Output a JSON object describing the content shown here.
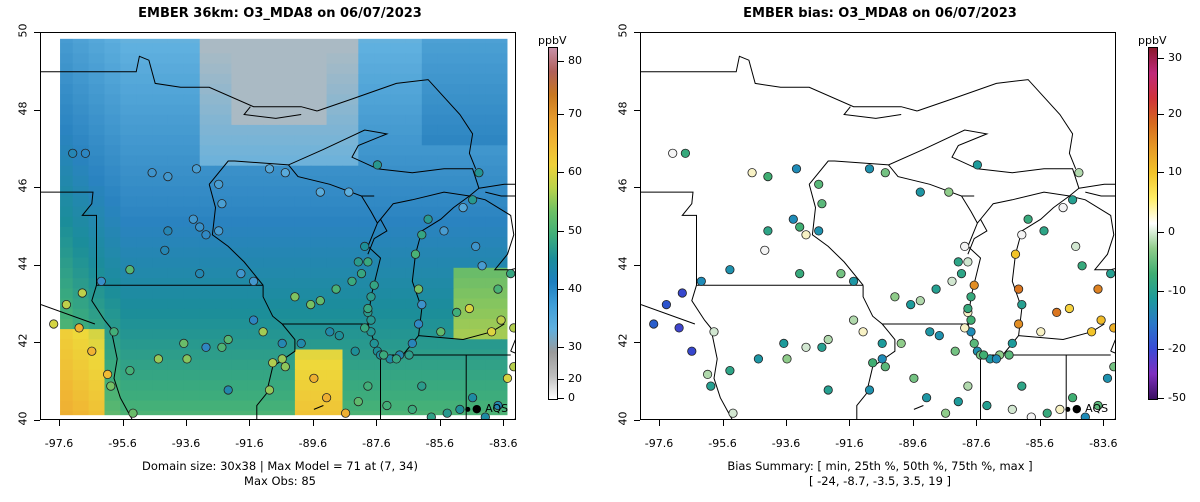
{
  "left": {
    "title": "EMBER 36km: O3_MDA8 on 06/07/2023",
    "caption_line1": "Domain size: 30x38 | Max Model = 71 at (7, 34)",
    "caption_line2": "Max Obs: 85",
    "colorbar_unit": "ppbV",
    "colorbar_ticks": [
      "80",
      "70",
      "60",
      "50",
      "40",
      "30",
      "20",
      "0"
    ],
    "legend_label": "AQS"
  },
  "right": {
    "title": "EMBER bias: O3_MDA8 on 06/07/2023",
    "caption_line1": "Bias Summary: [ min, 25th %, 50th %, 75th %, max ]",
    "caption_line2": "[ -24,   -8.7,   -3.5,   3.5,   19 ]",
    "colorbar_unit": "ppbV",
    "colorbar_ticks": [
      "30",
      "20",
      "10",
      "0",
      "-10",
      "-20",
      "-50"
    ],
    "legend_label": "AQS"
  },
  "axes": {
    "y_ticks": [
      "50",
      "48",
      "46",
      "44",
      "42",
      "40"
    ],
    "x_ticks": [
      "-97.6",
      "-95.6",
      "-93.6",
      "-91.6",
      "-89.6",
      "-87.6",
      "-85.6",
      "-83.6"
    ],
    "lon_range": [
      -98.2,
      -83.2
    ],
    "lat_range": [
      40.0,
      50.0
    ]
  },
  "colors": {
    "conc_scale": [
      "#ffffff",
      "#bdbdbd",
      "#9a9a9a",
      "#5fb0df",
      "#3f9ed8",
      "#1d7fbf",
      "#1b8d9a",
      "#3fae7a",
      "#6cc065",
      "#b9d34c",
      "#efd13a",
      "#f0b433",
      "#e59a2d",
      "#c8771f",
      "#b0605a",
      "#c890a8"
    ],
    "bias_scale": [
      "#3a1060",
      "#7f2fc0",
      "#3a4bd6",
      "#2a78c8",
      "#1d9b9b",
      "#3fae72",
      "#8fcc8a",
      "#ffffff",
      "#ffee66",
      "#f2c42a",
      "#e69a26",
      "#d66a1e",
      "#d0323a",
      "#c0287a",
      "#8a1a2e"
    ]
  }
}
